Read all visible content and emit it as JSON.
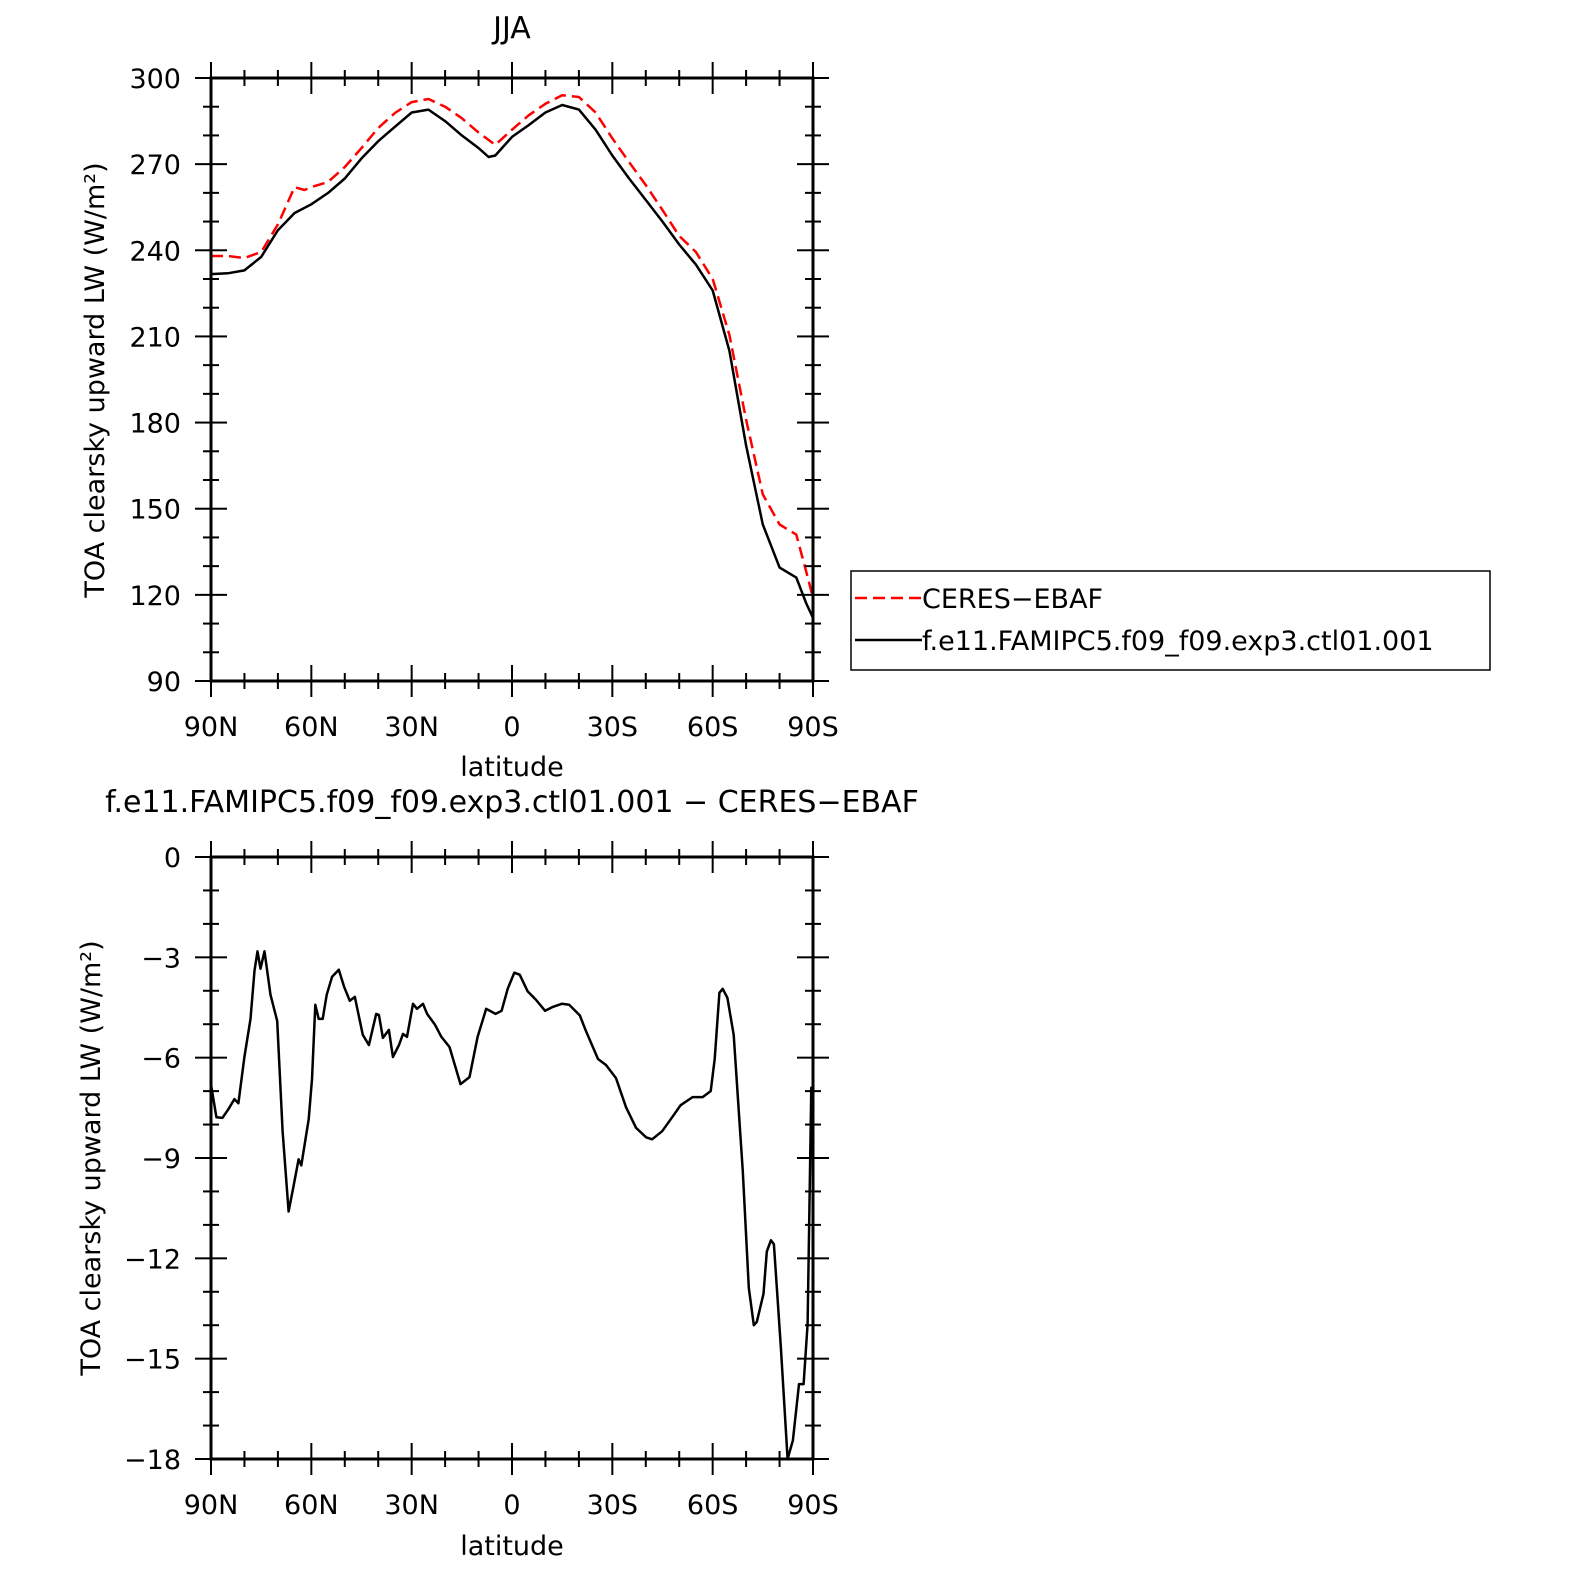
{
  "chart_data": [
    {
      "type": "line",
      "title": "JJA",
      "xlabel": "latitude",
      "ylabel": "TOA clearsky upward LW (W/m²)",
      "xlim": [
        90,
        -90
      ],
      "ylim": [
        90,
        300
      ],
      "xticks": [
        90,
        60,
        30,
        0,
        -30,
        -60,
        -90
      ],
      "xtick_labels": [
        "90N",
        "60N",
        "30N",
        "0",
        "30S",
        "60S",
        "90S"
      ],
      "yticks": [
        90,
        120,
        150,
        180,
        210,
        240,
        270,
        300
      ],
      "ytick_labels": [
        "90",
        "120",
        "150",
        "180",
        "210",
        "240",
        "270",
        "300"
      ],
      "grid": false,
      "legend_placement": "right",
      "series": [
        {
          "name": "CERES-EBAF",
          "color": "#ff0000",
          "style": "dashed",
          "x": [
            90,
            85,
            80,
            75,
            70,
            65,
            62,
            60,
            55,
            50,
            45,
            40,
            35,
            30,
            25,
            20,
            15,
            10,
            5,
            0,
            -5,
            -10,
            -15,
            -20,
            -25,
            -30,
            -35,
            -40,
            -45,
            -50,
            -55,
            -60,
            -65,
            -70,
            -75,
            -80,
            -85,
            -88,
            -90
          ],
          "y": [
            238,
            238,
            237.3,
            239.4,
            249,
            262,
            261,
            262,
            263.8,
            269,
            275.6,
            282.6,
            287.8,
            291.6,
            292.7,
            290,
            286,
            281,
            276.7,
            282,
            287,
            291,
            294,
            293.4,
            288,
            279,
            270.7,
            262.7,
            254,
            245,
            239.4,
            230,
            210.5,
            181,
            155,
            144.5,
            141,
            128,
            119
          ]
        },
        {
          "name": "f.e11.FAMIPC5.f09_f09.exp3.ctl01.001",
          "color": "#000000",
          "style": "solid",
          "x": [
            90,
            85,
            80,
            75,
            70,
            65,
            60,
            55,
            50,
            45,
            40,
            35,
            30,
            25,
            20,
            15,
            10,
            7,
            5,
            0,
            -5,
            -10,
            -15,
            -20,
            -25,
            -30,
            -35,
            -40,
            -45,
            -50,
            -55,
            -60,
            -65,
            -70,
            -75,
            -80,
            -85,
            -88,
            -90
          ],
          "y": [
            231.7,
            232,
            233,
            237.7,
            247,
            253,
            256,
            260,
            265,
            272,
            278,
            283,
            288,
            289,
            285,
            280,
            275.6,
            272.5,
            273,
            279.5,
            283.6,
            288,
            290.6,
            289,
            282,
            273,
            265,
            257.5,
            250,
            242,
            235,
            226,
            205,
            172,
            144.5,
            129.5,
            126,
            117,
            112
          ]
        }
      ],
      "legend": [
        "CERES−EBAF",
        "f.e11.FAMIPC5.f09_f09.exp3.ctl01.001"
      ]
    },
    {
      "type": "line",
      "title": "f.e11.FAMIPC5.f09_f09.exp3.ctl01.001 − CERES−EBAF",
      "xlabel": "latitude",
      "ylabel": "TOA clearsky upward LW (W/m²)",
      "xlim": [
        90,
        -90
      ],
      "ylim": [
        -18,
        0
      ],
      "xticks": [
        90,
        60,
        30,
        0,
        -30,
        -60,
        -90
      ],
      "xtick_labels": [
        "90N",
        "60N",
        "30N",
        "0",
        "30S",
        "60S",
        "90S"
      ],
      "yticks": [
        -18,
        -15,
        -12,
        -9,
        -6,
        -3,
        0
      ],
      "ytick_labels": [
        "−18",
        "−15",
        "−12",
        "−9",
        "−6",
        "−3",
        "0"
      ],
      "grid": false,
      "series": [
        {
          "color": "#000000",
          "style": "solid",
          "x": [
            90,
            88.4,
            86.6,
            84.8,
            83.0,
            81.8,
            80.0,
            78.2,
            77.0,
            76.1,
            75.2,
            74.0,
            72.2,
            70.2,
            68.6,
            66.8,
            65.4,
            63.8,
            63.0,
            60.8,
            59.8,
            58.8,
            57.8,
            56.6,
            55.4,
            53.8,
            51.8,
            50.2,
            48.5,
            47.0,
            44.6,
            42.8,
            40.6,
            39.8,
            38.6,
            36.8,
            35.6,
            33.8,
            32.6,
            31.4,
            29.6,
            28.4,
            26.6,
            25.4,
            23.0,
            21.1,
            18.7,
            15.4,
            12.7,
            10.3,
            7.7,
            4.9,
            3.1,
            1.3,
            -0.7,
            -2.3,
            -4.7,
            -7.1,
            -9.9,
            -12.3,
            -14.9,
            -17.1,
            -20.3,
            -22.1,
            -25.7,
            -28.1,
            -31.1,
            -34.1,
            -37.1,
            -40.1,
            -41.9,
            -44.9,
            -47.9,
            -50.4,
            -54.0,
            -57.0,
            -59.4,
            -60.6,
            -62.0,
            -63.0,
            -64.4,
            -66.3,
            -69.0,
            -70.8,
            -72.3,
            -73.2,
            -75.2,
            -76.2,
            -77.4,
            -78.3,
            -80.4,
            -82.4,
            -84.0,
            -85.8,
            -87.2,
            -88.4,
            -89.5,
            -90
          ],
          "y": [
            -6.8,
            -7.78,
            -7.8,
            -7.54,
            -7.24,
            -7.36,
            -5.98,
            -4.84,
            -3.4,
            -2.82,
            -3.34,
            -2.82,
            -4.12,
            -4.9,
            -8.2,
            -10.6,
            -9.88,
            -9.04,
            -9.22,
            -7.84,
            -6.64,
            -4.42,
            -4.84,
            -4.84,
            -4.12,
            -3.58,
            -3.37,
            -3.88,
            -4.3,
            -4.18,
            -5.32,
            -5.62,
            -4.69,
            -4.72,
            -5.41,
            -5.17,
            -5.98,
            -5.62,
            -5.29,
            -5.38,
            -4.39,
            -4.54,
            -4.39,
            -4.69,
            -5.02,
            -5.38,
            -5.68,
            -6.79,
            -6.58,
            -5.38,
            -4.54,
            -4.69,
            -4.6,
            -3.94,
            -3.46,
            -3.52,
            -4.02,
            -4.26,
            -4.6,
            -4.48,
            -4.39,
            -4.42,
            -4.74,
            -5.2,
            -6.04,
            -6.22,
            -6.61,
            -7.48,
            -8.1,
            -8.38,
            -8.44,
            -8.2,
            -7.78,
            -7.42,
            -7.18,
            -7.18,
            -7.0,
            -6.04,
            -4.06,
            -3.94,
            -4.21,
            -5.32,
            -9.4,
            -12.88,
            -14.0,
            -13.9,
            -13.06,
            -11.8,
            -11.46,
            -11.58,
            -14.68,
            -18.0,
            -17.44,
            -15.76,
            -15.76,
            -13.96,
            -6.9,
            -7.2
          ]
        }
      ]
    }
  ]
}
